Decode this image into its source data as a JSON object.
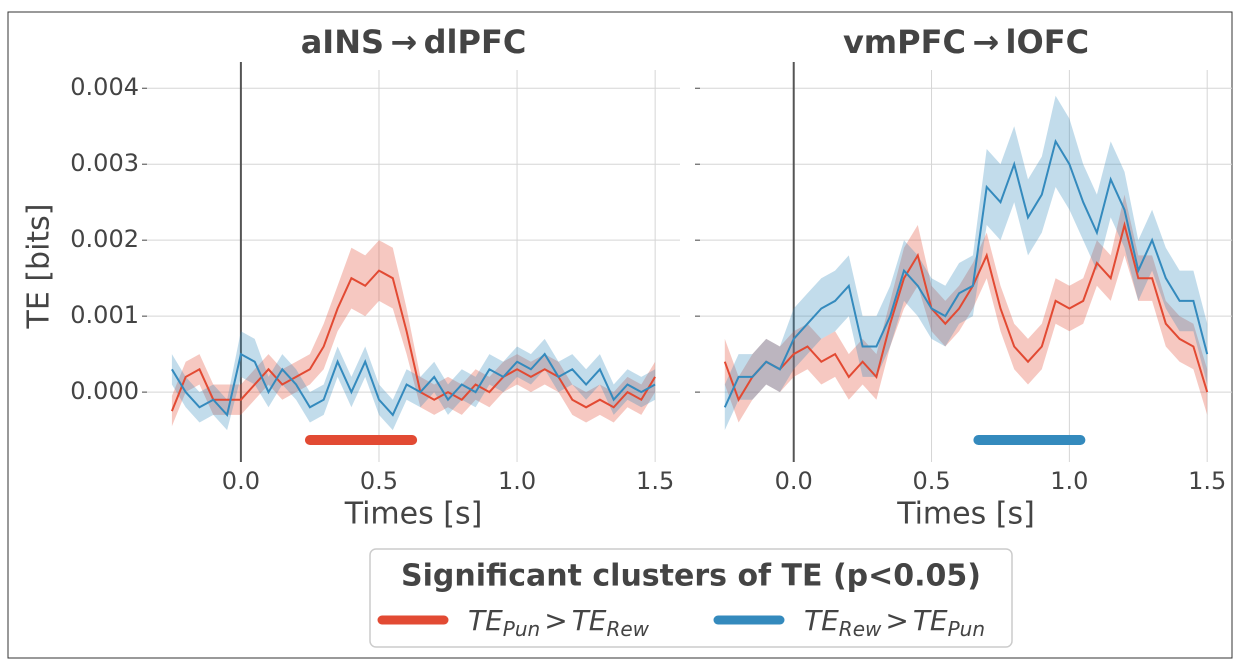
{
  "chart_data": [
    {
      "type": "line",
      "title": "aINS → dlPFC",
      "xlabel": "Times [s]",
      "ylabel": "TE [bits]",
      "x": [
        -0.25,
        -0.2,
        -0.15,
        -0.1,
        -0.05,
        0,
        0.05,
        0.1,
        0.15,
        0.2,
        0.25,
        0.3,
        0.35,
        0.4,
        0.45,
        0.5,
        0.55,
        0.6,
        0.65,
        0.7,
        0.75,
        0.8,
        0.85,
        0.9,
        0.95,
        1.0,
        1.05,
        1.1,
        1.15,
        1.2,
        1.25,
        1.3,
        1.35,
        1.4,
        1.45,
        1.5
      ],
      "series": [
        {
          "color": "#e24a33",
          "values": [
            -0.00025,
            0.0002,
            0.0003,
            -0.0001,
            -0.0001,
            -0.0001,
            0.0001,
            0.0003,
            0.0001,
            0.0002,
            0.0003,
            0.0006,
            0.0011,
            0.0015,
            0.0014,
            0.0016,
            0.0015,
            0.0008,
            0.0,
            -0.0001,
            0.0,
            -0.0001,
            0.0001,
            0.0,
            0.0002,
            0.0003,
            0.0002,
            0.0003,
            0.0002,
            -0.0001,
            -0.0002,
            -0.0001,
            -0.0002,
            0.0,
            -0.0001,
            0.0002
          ],
          "error": [
            0.0002,
            0.0002,
            0.0002,
            0.0002,
            0.0002,
            0.0002,
            0.0002,
            0.0002,
            0.0002,
            0.0002,
            0.0002,
            0.0003,
            0.0003,
            0.0004,
            0.0004,
            0.0004,
            0.0004,
            0.0003,
            0.0002,
            0.0002,
            0.0002,
            0.0002,
            0.0002,
            0.0002,
            0.0002,
            0.0002,
            0.0002,
            0.0002,
            0.0002,
            0.0002,
            0.0002,
            0.0002,
            0.0002,
            0.0002,
            0.0002,
            0.0002
          ]
        },
        {
          "color": "#348abd",
          "values": [
            0.0003,
            0.0,
            -0.0002,
            -0.0001,
            -0.0003,
            0.0005,
            0.0004,
            0.0,
            0.0003,
            0.0001,
            -0.0002,
            -0.0001,
            0.0004,
            0.0,
            0.0004,
            -0.0001,
            -0.0003,
            0.0001,
            0.0,
            0.0002,
            -0.0001,
            0.0001,
            0.0,
            0.0003,
            0.0002,
            0.0004,
            0.0003,
            0.0005,
            0.0002,
            0.0003,
            0.0001,
            0.0003,
            -0.0001,
            0.0001,
            0.0,
            0.0001
          ],
          "error": [
            0.0002,
            0.0002,
            0.0002,
            0.0002,
            0.0002,
            0.0003,
            0.0003,
            0.0002,
            0.0002,
            0.0002,
            0.0002,
            0.0002,
            0.0002,
            0.0002,
            0.0002,
            0.0002,
            0.0002,
            0.0002,
            0.0002,
            0.0002,
            0.0002,
            0.0002,
            0.0002,
            0.0002,
            0.0002,
            0.0002,
            0.0002,
            0.0002,
            0.0002,
            0.0002,
            0.0002,
            0.0002,
            0.0002,
            0.0002,
            0.0002,
            0.0002
          ]
        }
      ],
      "clusters": [
        {
          "start": 0.25,
          "end": 0.62,
          "color": "#e24a33"
        }
      ],
      "xlim": [
        -0.34,
        1.59
      ],
      "ylim": [
        -0.00092,
        0.00424
      ],
      "xticks": [
        {
          "value": 0,
          "label": "0.0"
        },
        0.5,
        {
          "value": 1,
          "label": "1.0"
        },
        1.5
      ],
      "yticks": [
        {
          "value": 0,
          "label": "0.000"
        },
        0.001,
        0.002,
        0.003,
        0.004
      ],
      "ytick_labels": true,
      "grid": true,
      "vline": 0
    },
    {
      "type": "line",
      "title": "vmPFC → lOFC",
      "xlabel": "Times [s]",
      "x": [
        -0.25,
        -0.2,
        -0.15,
        -0.1,
        -0.05,
        0,
        0.05,
        0.1,
        0.15,
        0.2,
        0.25,
        0.3,
        0.35,
        0.4,
        0.45,
        0.5,
        0.55,
        0.6,
        0.65,
        0.7,
        0.75,
        0.8,
        0.85,
        0.9,
        0.95,
        1.0,
        1.05,
        1.1,
        1.15,
        1.2,
        1.25,
        1.3,
        1.35,
        1.4,
        1.45,
        1.5
      ],
      "series": [
        {
          "color": "#e24a33",
          "values": [
            0.0004,
            -0.0001,
            0.0002,
            0.0004,
            0.0003,
            0.0005,
            0.0006,
            0.0004,
            0.0005,
            0.0002,
            0.0004,
            0.0002,
            0.0009,
            0.0015,
            0.0018,
            0.0011,
            0.0009,
            0.0011,
            0.0014,
            0.0018,
            0.0011,
            0.0006,
            0.0004,
            0.0006,
            0.0012,
            0.0011,
            0.0012,
            0.0017,
            0.0015,
            0.0022,
            0.0015,
            0.0015,
            0.0009,
            0.0007,
            0.0006,
            0.0
          ],
          "error": [
            0.0003,
            0.0003,
            0.0003,
            0.0003,
            0.0003,
            0.0003,
            0.0003,
            0.0003,
            0.0003,
            0.0003,
            0.0003,
            0.0003,
            0.0003,
            0.0004,
            0.0004,
            0.0003,
            0.0003,
            0.0003,
            0.0003,
            0.0003,
            0.0003,
            0.0003,
            0.0003,
            0.0003,
            0.0003,
            0.0003,
            0.0003,
            0.0003,
            0.0003,
            0.0004,
            0.0003,
            0.0003,
            0.0003,
            0.0003,
            0.0003,
            0.0003
          ]
        },
        {
          "color": "#348abd",
          "values": [
            -0.0002,
            0.0002,
            0.0002,
            0.0004,
            0.0003,
            0.0007,
            0.0009,
            0.0011,
            0.0012,
            0.0014,
            0.0006,
            0.0006,
            0.001,
            0.0016,
            0.0014,
            0.0011,
            0.001,
            0.0013,
            0.0014,
            0.0027,
            0.0025,
            0.003,
            0.0023,
            0.0026,
            0.0033,
            0.003,
            0.0025,
            0.0021,
            0.0028,
            0.0024,
            0.0016,
            0.002,
            0.0015,
            0.0012,
            0.0012,
            0.0005
          ],
          "error": [
            0.0003,
            0.0003,
            0.0003,
            0.0003,
            0.0003,
            0.0004,
            0.0004,
            0.0004,
            0.0004,
            0.0004,
            0.0004,
            0.0004,
            0.0004,
            0.0004,
            0.0004,
            0.0004,
            0.0004,
            0.0004,
            0.0004,
            0.0005,
            0.0005,
            0.0005,
            0.0005,
            0.0005,
            0.0006,
            0.0006,
            0.0005,
            0.0005,
            0.0005,
            0.0005,
            0.0004,
            0.0004,
            0.0004,
            0.0004,
            0.0004,
            0.0004
          ]
        }
      ],
      "clusters": [
        {
          "start": 0.67,
          "end": 1.04,
          "color": "#348abd"
        }
      ],
      "xlim": [
        -0.34,
        1.59
      ],
      "ylim": [
        -0.00092,
        0.00424
      ],
      "xticks": [
        {
          "value": 0,
          "label": "0.0"
        },
        0.5,
        {
          "value": 1,
          "label": "1.0"
        },
        1.5
      ],
      "yticks": [
        0,
        0.001,
        0.002,
        0.003,
        0.004
      ],
      "ytick_labels": false,
      "grid": true,
      "vline": 0
    }
  ],
  "legend": {
    "title": "Significant clusters of TE (p<0.05)",
    "entries": [
      {
        "color": "#e24a33",
        "a": "TE",
        "a_sub": "Pun",
        "op": ">",
        "b": "TE",
        "b_sub": "Rew"
      },
      {
        "color": "#348abd",
        "a": "TE",
        "a_sub": "Rew",
        "op": ">",
        "b": "TE",
        "b_sub": "Pun"
      }
    ]
  }
}
